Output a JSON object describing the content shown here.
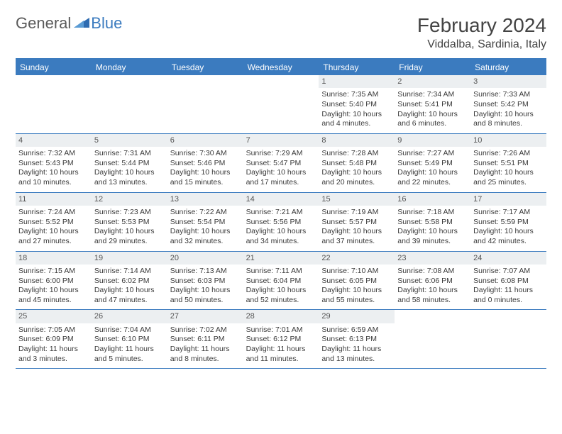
{
  "logo": {
    "text1": "General",
    "text2": "Blue"
  },
  "title": "February 2024",
  "location": "Viddalba, Sardinia, Italy",
  "colors": {
    "brand_blue": "#3b7bbf",
    "header_text": "#ffffff",
    "daynum_bg": "#eceff1",
    "body_text": "#3a3a3a",
    "logo_gray": "#5a5a5a"
  },
  "day_headers": [
    "Sunday",
    "Monday",
    "Tuesday",
    "Wednesday",
    "Thursday",
    "Friday",
    "Saturday"
  ],
  "weeks": [
    [
      {
        "empty": true
      },
      {
        "empty": true
      },
      {
        "empty": true
      },
      {
        "empty": true
      },
      {
        "n": "1",
        "sr": "Sunrise: 7:35 AM",
        "ss": "Sunset: 5:40 PM",
        "dl1": "Daylight: 10 hours",
        "dl2": "and 4 minutes."
      },
      {
        "n": "2",
        "sr": "Sunrise: 7:34 AM",
        "ss": "Sunset: 5:41 PM",
        "dl1": "Daylight: 10 hours",
        "dl2": "and 6 minutes."
      },
      {
        "n": "3",
        "sr": "Sunrise: 7:33 AM",
        "ss": "Sunset: 5:42 PM",
        "dl1": "Daylight: 10 hours",
        "dl2": "and 8 minutes."
      }
    ],
    [
      {
        "n": "4",
        "sr": "Sunrise: 7:32 AM",
        "ss": "Sunset: 5:43 PM",
        "dl1": "Daylight: 10 hours",
        "dl2": "and 10 minutes."
      },
      {
        "n": "5",
        "sr": "Sunrise: 7:31 AM",
        "ss": "Sunset: 5:44 PM",
        "dl1": "Daylight: 10 hours",
        "dl2": "and 13 minutes."
      },
      {
        "n": "6",
        "sr": "Sunrise: 7:30 AM",
        "ss": "Sunset: 5:46 PM",
        "dl1": "Daylight: 10 hours",
        "dl2": "and 15 minutes."
      },
      {
        "n": "7",
        "sr": "Sunrise: 7:29 AM",
        "ss": "Sunset: 5:47 PM",
        "dl1": "Daylight: 10 hours",
        "dl2": "and 17 minutes."
      },
      {
        "n": "8",
        "sr": "Sunrise: 7:28 AM",
        "ss": "Sunset: 5:48 PM",
        "dl1": "Daylight: 10 hours",
        "dl2": "and 20 minutes."
      },
      {
        "n": "9",
        "sr": "Sunrise: 7:27 AM",
        "ss": "Sunset: 5:49 PM",
        "dl1": "Daylight: 10 hours",
        "dl2": "and 22 minutes."
      },
      {
        "n": "10",
        "sr": "Sunrise: 7:26 AM",
        "ss": "Sunset: 5:51 PM",
        "dl1": "Daylight: 10 hours",
        "dl2": "and 25 minutes."
      }
    ],
    [
      {
        "n": "11",
        "sr": "Sunrise: 7:24 AM",
        "ss": "Sunset: 5:52 PM",
        "dl1": "Daylight: 10 hours",
        "dl2": "and 27 minutes."
      },
      {
        "n": "12",
        "sr": "Sunrise: 7:23 AM",
        "ss": "Sunset: 5:53 PM",
        "dl1": "Daylight: 10 hours",
        "dl2": "and 29 minutes."
      },
      {
        "n": "13",
        "sr": "Sunrise: 7:22 AM",
        "ss": "Sunset: 5:54 PM",
        "dl1": "Daylight: 10 hours",
        "dl2": "and 32 minutes."
      },
      {
        "n": "14",
        "sr": "Sunrise: 7:21 AM",
        "ss": "Sunset: 5:56 PM",
        "dl1": "Daylight: 10 hours",
        "dl2": "and 34 minutes."
      },
      {
        "n": "15",
        "sr": "Sunrise: 7:19 AM",
        "ss": "Sunset: 5:57 PM",
        "dl1": "Daylight: 10 hours",
        "dl2": "and 37 minutes."
      },
      {
        "n": "16",
        "sr": "Sunrise: 7:18 AM",
        "ss": "Sunset: 5:58 PM",
        "dl1": "Daylight: 10 hours",
        "dl2": "and 39 minutes."
      },
      {
        "n": "17",
        "sr": "Sunrise: 7:17 AM",
        "ss": "Sunset: 5:59 PM",
        "dl1": "Daylight: 10 hours",
        "dl2": "and 42 minutes."
      }
    ],
    [
      {
        "n": "18",
        "sr": "Sunrise: 7:15 AM",
        "ss": "Sunset: 6:00 PM",
        "dl1": "Daylight: 10 hours",
        "dl2": "and 45 minutes."
      },
      {
        "n": "19",
        "sr": "Sunrise: 7:14 AM",
        "ss": "Sunset: 6:02 PM",
        "dl1": "Daylight: 10 hours",
        "dl2": "and 47 minutes."
      },
      {
        "n": "20",
        "sr": "Sunrise: 7:13 AM",
        "ss": "Sunset: 6:03 PM",
        "dl1": "Daylight: 10 hours",
        "dl2": "and 50 minutes."
      },
      {
        "n": "21",
        "sr": "Sunrise: 7:11 AM",
        "ss": "Sunset: 6:04 PM",
        "dl1": "Daylight: 10 hours",
        "dl2": "and 52 minutes."
      },
      {
        "n": "22",
        "sr": "Sunrise: 7:10 AM",
        "ss": "Sunset: 6:05 PM",
        "dl1": "Daylight: 10 hours",
        "dl2": "and 55 minutes."
      },
      {
        "n": "23",
        "sr": "Sunrise: 7:08 AM",
        "ss": "Sunset: 6:06 PM",
        "dl1": "Daylight: 10 hours",
        "dl2": "and 58 minutes."
      },
      {
        "n": "24",
        "sr": "Sunrise: 7:07 AM",
        "ss": "Sunset: 6:08 PM",
        "dl1": "Daylight: 11 hours",
        "dl2": "and 0 minutes."
      }
    ],
    [
      {
        "n": "25",
        "sr": "Sunrise: 7:05 AM",
        "ss": "Sunset: 6:09 PM",
        "dl1": "Daylight: 11 hours",
        "dl2": "and 3 minutes."
      },
      {
        "n": "26",
        "sr": "Sunrise: 7:04 AM",
        "ss": "Sunset: 6:10 PM",
        "dl1": "Daylight: 11 hours",
        "dl2": "and 5 minutes."
      },
      {
        "n": "27",
        "sr": "Sunrise: 7:02 AM",
        "ss": "Sunset: 6:11 PM",
        "dl1": "Daylight: 11 hours",
        "dl2": "and 8 minutes."
      },
      {
        "n": "28",
        "sr": "Sunrise: 7:01 AM",
        "ss": "Sunset: 6:12 PM",
        "dl1": "Daylight: 11 hours",
        "dl2": "and 11 minutes."
      },
      {
        "n": "29",
        "sr": "Sunrise: 6:59 AM",
        "ss": "Sunset: 6:13 PM",
        "dl1": "Daylight: 11 hours",
        "dl2": "and 13 minutes."
      },
      {
        "empty": true
      },
      {
        "empty": true
      }
    ]
  ]
}
